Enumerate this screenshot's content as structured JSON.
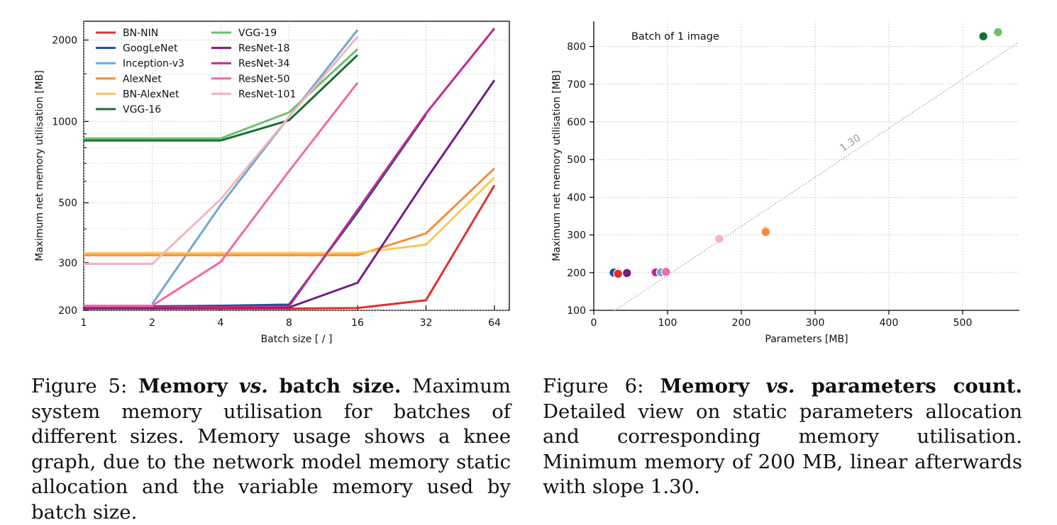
{
  "chart_data": [
    {
      "type": "line",
      "xlabel": "Batch size [ / ]",
      "ylabel": "Maximum net memory utilisation [MB]",
      "x": [
        1,
        2,
        4,
        8,
        16,
        32,
        64
      ],
      "x_scale": "log2",
      "y_scale": "log",
      "xticks": [
        "1",
        "2",
        "4",
        "8",
        "16",
        "32",
        "64"
      ],
      "yticks": [
        200,
        300,
        500,
        1000,
        2000
      ],
      "ylim": [
        200,
        2250
      ],
      "grid": true,
      "legend_position": "top-left",
      "series": [
        {
          "name": "BN-NIN",
          "color": "#e0302a",
          "values": [
            203,
            203,
            203,
            203,
            204,
            218,
            580
          ]
        },
        {
          "name": "GoogLeNet",
          "color": "#1f4e9a",
          "values": [
            206,
            207,
            208,
            210,
            460,
            1060,
            null
          ]
        },
        {
          "name": "Inception-v3",
          "color": "#6fa8d6",
          "values": [
            null,
            211,
            490,
            1040,
            2180,
            null,
            null
          ]
        },
        {
          "name": "AlexNet",
          "color": "#f28c3c",
          "values": [
            320,
            320,
            320,
            320,
            320,
            385,
            670
          ]
        },
        {
          "name": "BN-AlexNet",
          "color": "#f6cb55",
          "values": [
            326,
            326,
            326,
            326,
            326,
            350,
            620
          ]
        },
        {
          "name": "VGG-16",
          "color": "#1a6e31",
          "values": [
            850,
            850,
            850,
            1010,
            1760,
            null,
            null
          ]
        },
        {
          "name": "VGG-19",
          "color": "#6ac26b",
          "values": [
            865,
            865,
            865,
            1080,
            1850,
            null,
            null
          ]
        },
        {
          "name": "ResNet-18",
          "color": "#721f81",
          "values": [
            204,
            204,
            205,
            205,
            253,
            610,
            1420
          ]
        },
        {
          "name": "ResNet-34",
          "color": "#c2298b",
          "values": [
            206,
            206,
            206,
            207,
            470,
            1070,
            2210
          ]
        },
        {
          "name": "ResNet-50",
          "color": "#ee6ba4",
          "values": [
            208,
            208,
            302,
            655,
            1390,
            null,
            null
          ]
        },
        {
          "name": "ResNet-101",
          "color": "#f6b4bc",
          "values": [
            297,
            297,
            515,
            1040,
            2060,
            null,
            null
          ]
        }
      ]
    },
    {
      "type": "scatter",
      "title": "Batch of 1 image",
      "xlabel": "Parameters [MB]",
      "ylabel": "Maximum net memory utilisation [MB]",
      "xlim": [
        0,
        575
      ],
      "ylim": [
        100,
        875
      ],
      "xticks": [
        0,
        100,
        200,
        300,
        400,
        500
      ],
      "yticks": [
        100,
        200,
        300,
        400,
        500,
        600,
        700,
        800
      ],
      "grid": true,
      "fit_line": {
        "slope": 1.3,
        "label": "1.30",
        "x_range": [
          28,
          575
        ],
        "intercept_at_x0": 63
      },
      "points": [
        {
          "name": "GoogLeNet",
          "x": 27,
          "y": 200,
          "color": "#1f4e9a"
        },
        {
          "name": "BN-NIN",
          "x": 33,
          "y": 197,
          "color": "#e0302a"
        },
        {
          "name": "ResNet-18",
          "x": 45,
          "y": 199,
          "color": "#721f81"
        },
        {
          "name": "ResNet-34",
          "x": 84,
          "y": 201,
          "color": "#c2298b"
        },
        {
          "name": "Inception-v3",
          "x": 91,
          "y": 201,
          "color": "#6fa8d6"
        },
        {
          "name": "ResNet-50",
          "x": 98,
          "y": 202,
          "color": "#ee6ba4"
        },
        {
          "name": "ResNet-101",
          "x": 170,
          "y": 290,
          "color": "#f6b4bc"
        },
        {
          "name": "BN-AlexNet",
          "x": 233,
          "y": 312,
          "color": "#f6cb55"
        },
        {
          "name": "AlexNet",
          "x": 233,
          "y": 308,
          "color": "#f28c3c"
        },
        {
          "name": "VGG-16",
          "x": 528,
          "y": 827,
          "color": "#1a6e31"
        },
        {
          "name": "VGG-19",
          "x": 548,
          "y": 838,
          "color": "#6ac26b"
        }
      ]
    }
  ],
  "captions": {
    "fig5": {
      "label": "Figure 5:",
      "bold_a": "Memory",
      "vs": "vs.",
      "bold_b": "batch size.",
      "body": "Maximum system memory utilisation for batches of different sizes. Memory usage shows a knee graph, due to the network model memory static allocation and the variable memory used by batch size."
    },
    "fig6": {
      "label": "Figure 6:",
      "bold_a": "Memory",
      "vs": "vs.",
      "bold_b": "parameters count.",
      "body": "Detailed view on static parameters allocation and corresponding memory utilisation. Minimum memory of 200 MB, linear afterwards with slope 1.30."
    }
  }
}
